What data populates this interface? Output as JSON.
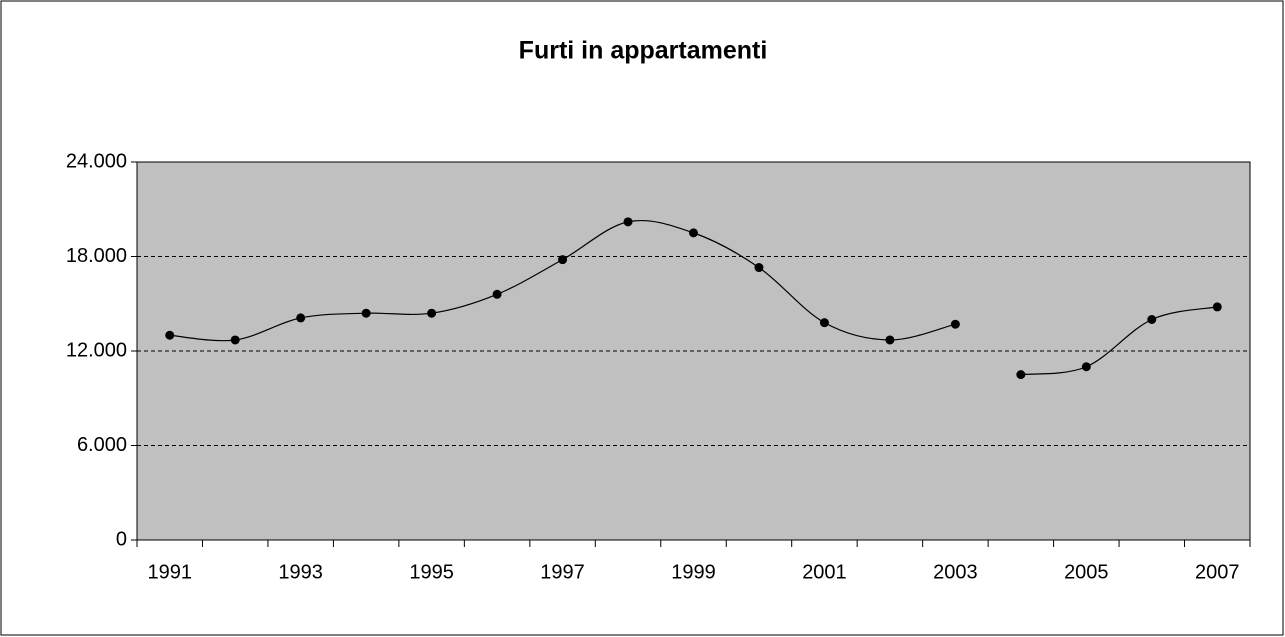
{
  "chart_data": {
    "type": "line",
    "title": "Furti in appartamenti",
    "categories": [
      "1991",
      null,
      "1993",
      null,
      "1995",
      null,
      "1997",
      null,
      "1999",
      null,
      "2001",
      null,
      "2003",
      null,
      "2005",
      null,
      "2007"
    ],
    "series": [
      {
        "color": "#000000",
        "values": [
          13000,
          12700,
          14100,
          14400,
          14400,
          15600,
          17800,
          20200,
          19500,
          17300,
          13800,
          12700,
          13700,
          null,
          null,
          null,
          null
        ]
      },
      {
        "color": "#000000",
        "values": [
          null,
          null,
          null,
          null,
          null,
          null,
          null,
          null,
          null,
          null,
          null,
          null,
          null,
          10500,
          11000,
          14000,
          14800
        ]
      }
    ],
    "ylim": [
      0,
      24000
    ],
    "yticks": [
      0,
      {
        "value": 6000,
        "label": "6.000"
      },
      {
        "value": 12000,
        "label": "12.000"
      },
      {
        "value": 18000,
        "label": "18.000"
      },
      {
        "value": 24000,
        "label": "24.000"
      }
    ],
    "grid": true,
    "plot_background": "#c0c0c0"
  }
}
